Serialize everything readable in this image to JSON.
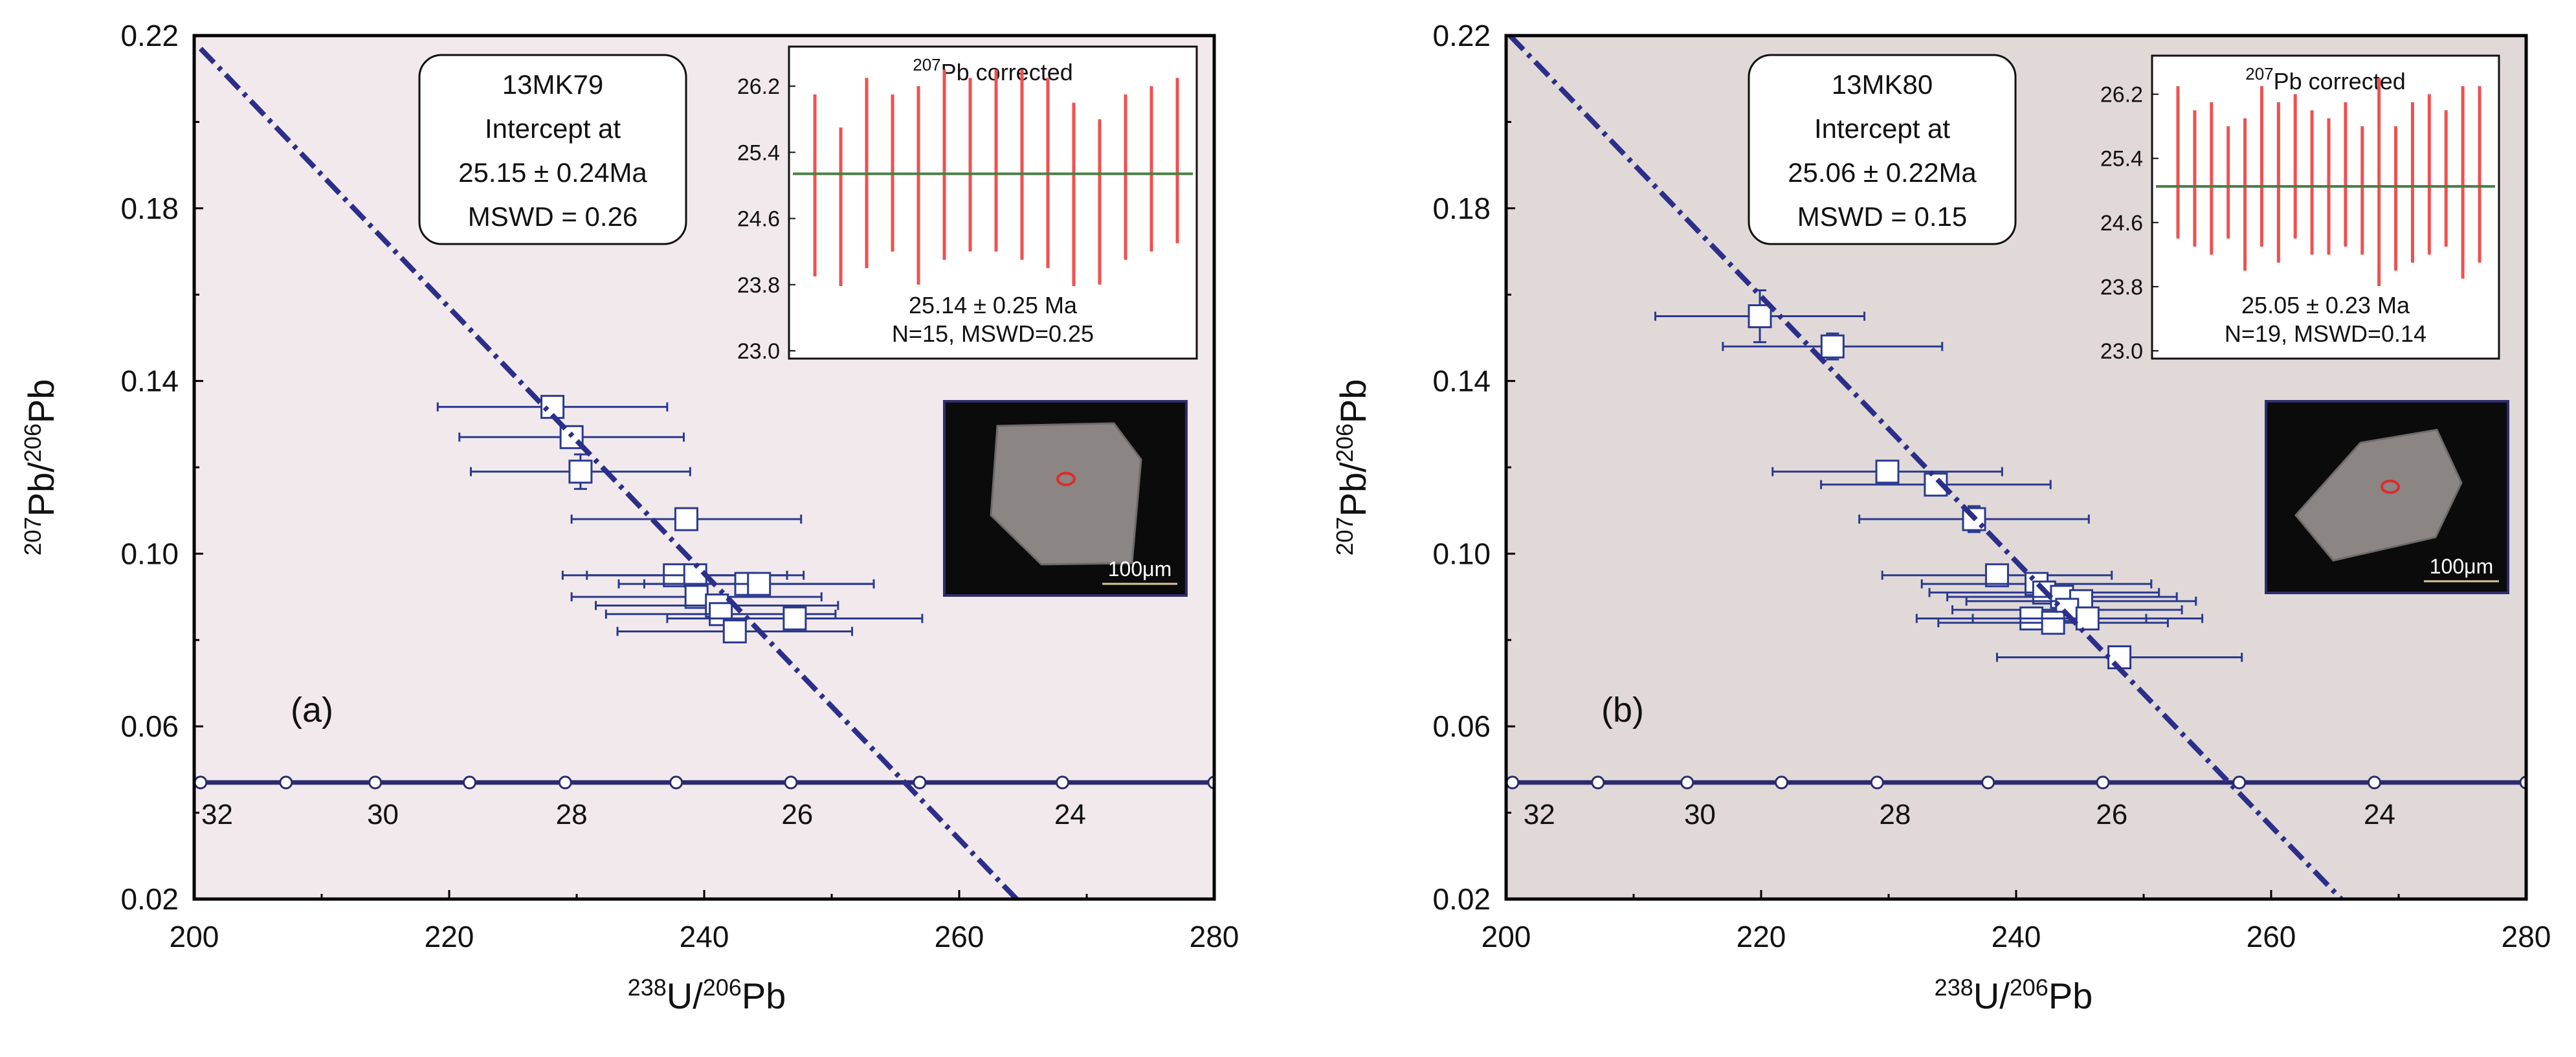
{
  "colors": {
    "panel_a_bg": "#f1e9ec",
    "panel_b_bg": "#e0d9d8",
    "regression": "#2b2f8a",
    "concordia": "#2b2a6e",
    "error_bar": "#2b3a8e",
    "marker_fill": "#ffffff",
    "inset_bar": "#f05050",
    "inset_mean": "#4a7f43"
  },
  "axes_text": {
    "x_label_sup1": "238",
    "x_label_mid": "U/",
    "x_label_sup2": "206",
    "x_label_end": "Pb",
    "y_label_sup1": "207",
    "y_label_mid": "Pb/",
    "y_label_sup2": "206",
    "y_label_end": "Pb"
  },
  "chart_data": [
    {
      "type": "scatter",
      "panel_label": "(a)",
      "xlabel": "238U/206Pb",
      "ylabel": "207Pb/206Pb",
      "xlim": [
        200,
        280
      ],
      "ylim": [
        0.02,
        0.22
      ],
      "x_ticks": [
        "200",
        "220",
        "240",
        "260",
        "280"
      ],
      "y_ticks": [
        "0.02",
        "0.06",
        "0.10",
        "0.14",
        "0.18",
        "0.22"
      ],
      "annotation": {
        "sample": "13MK79",
        "line1": "Intercept  at",
        "age": "25.15 ± 0.24Ma",
        "mswd": "MSWD = 0.26"
      },
      "regression_line": {
        "x": [
          200.5,
          264.5
        ],
        "y": [
          0.217,
          0.02
        ]
      },
      "concordia": {
        "y": 0.047,
        "tick_x": [
          200.5,
          207.2,
          214.2,
          221.6,
          229.1,
          237.8,
          246.8,
          256.9,
          268.1,
          280
        ],
        "labels": [
          {
            "text": "32",
            "x": 201.8
          },
          {
            "text": "30",
            "x": 214.8
          },
          {
            "text": "28",
            "x": 229.6
          },
          {
            "text": "26",
            "x": 247.3
          },
          {
            "text": "24",
            "x": 268.7
          }
        ]
      },
      "points": [
        {
          "x": 228.1,
          "y": 0.134,
          "xerr": 9.0,
          "yerr": 0.001
        },
        {
          "x": 229.6,
          "y": 0.127,
          "xerr": 8.8,
          "yerr": 0.002
        },
        {
          "x": 230.3,
          "y": 0.119,
          "xerr": 8.6,
          "yerr": 0.004
        },
        {
          "x": 238.6,
          "y": 0.108,
          "xerr": 9.0,
          "yerr": 0.001
        },
        {
          "x": 237.7,
          "y": 0.095,
          "xerr": 8.8,
          "yerr": 0.001
        },
        {
          "x": 239.3,
          "y": 0.095,
          "xerr": 8.5,
          "yerr": 0.001
        },
        {
          "x": 243.3,
          "y": 0.093,
          "xerr": 10.0,
          "yerr": 0.001
        },
        {
          "x": 244.3,
          "y": 0.093,
          "xerr": 9.0,
          "yerr": 0.001
        },
        {
          "x": 239.4,
          "y": 0.09,
          "xerr": 9.8,
          "yerr": 0.001
        },
        {
          "x": 241.0,
          "y": 0.088,
          "xerr": 9.5,
          "yerr": 0.001
        },
        {
          "x": 241.3,
          "y": 0.086,
          "xerr": 9.0,
          "yerr": 0.001
        },
        {
          "x": 247.1,
          "y": 0.085,
          "xerr": 10.0,
          "yerr": 0.001
        },
        {
          "x": 242.4,
          "y": 0.082,
          "xerr": 9.2,
          "yerr": 0.001
        }
      ],
      "inset": {
        "title_sup": "207",
        "title_rest": "Pb corrected",
        "ylim": [
          23.0,
          26.6
        ],
        "y_ticks": [
          "26.2",
          "25.4",
          "24.6",
          "23.8",
          "23.0"
        ],
        "mean": 25.14,
        "result": "25.14 ± 0.25  Ma",
        "stats": "N=15, MSWD=0.25",
        "bars": [
          {
            "low": 23.9,
            "high": 26.1
          },
          {
            "low": 23.7,
            "high": 25.7
          },
          {
            "low": 24.0,
            "high": 26.3
          },
          {
            "low": 24.2,
            "high": 26.1
          },
          {
            "low": 23.8,
            "high": 26.2
          },
          {
            "low": 24.1,
            "high": 26.4
          },
          {
            "low": 24.2,
            "high": 26.3
          },
          {
            "low": 24.2,
            "high": 26.4
          },
          {
            "low": 24.1,
            "high": 26.4
          },
          {
            "low": 24.0,
            "high": 26.3
          },
          {
            "low": 23.7,
            "high": 26.0
          },
          {
            "low": 23.8,
            "high": 25.8
          },
          {
            "low": 24.1,
            "high": 26.1
          },
          {
            "low": 24.2,
            "high": 26.2
          },
          {
            "low": 24.3,
            "high": 26.3
          }
        ]
      },
      "image": {
        "scale_label": "100μm",
        "grain_fill": "#8b8584"
      }
    },
    {
      "type": "scatter",
      "panel_label": "(b)",
      "xlabel": "238U/206Pb",
      "ylabel": "207Pb/206Pb",
      "xlim": [
        200,
        280
      ],
      "ylim": [
        0.02,
        0.22
      ],
      "x_ticks": [
        "200",
        "220",
        "240",
        "260",
        "280"
      ],
      "y_ticks": [
        "0.02",
        "0.06",
        "0.10",
        "0.14",
        "0.18",
        "0.22"
      ],
      "annotation": {
        "sample": "13MK80",
        "line1": "Intercept  at",
        "age": "25.06 ± 0.22Ma",
        "mswd": "MSWD = 0.15"
      },
      "regression_line": {
        "x": [
          200.3,
          265.5
        ],
        "y": [
          0.22,
          0.02
        ]
      },
      "concordia": {
        "y": 0.047,
        "tick_x": [
          200.5,
          207.2,
          214.2,
          221.6,
          229.1,
          237.8,
          246.8,
          257.5,
          268.1,
          280
        ],
        "labels": [
          {
            "text": "32",
            "x": 202.6
          },
          {
            "text": "30",
            "x": 215.2
          },
          {
            "text": "28",
            "x": 230.5
          },
          {
            "text": "26",
            "x": 247.5
          },
          {
            "text": "24",
            "x": 268.5
          }
        ]
      },
      "points": [
        {
          "x": 219.9,
          "y": 0.155,
          "xerr": 8.2,
          "yerr": 0.006
        },
        {
          "x": 225.6,
          "y": 0.148,
          "xerr": 8.6,
          "yerr": 0.003
        },
        {
          "x": 229.9,
          "y": 0.119,
          "xerr": 9.0,
          "yerr": 0.001
        },
        {
          "x": 233.7,
          "y": 0.116,
          "xerr": 9.0,
          "yerr": 0.001
        },
        {
          "x": 236.7,
          "y": 0.108,
          "xerr": 9.0,
          "yerr": 0.003
        },
        {
          "x": 238.5,
          "y": 0.095,
          "xerr": 9.0,
          "yerr": 0.001
        },
        {
          "x": 241.6,
          "y": 0.093,
          "xerr": 9.0,
          "yerr": 0.001
        },
        {
          "x": 242.2,
          "y": 0.091,
          "xerr": 9.0,
          "yerr": 0.001
        },
        {
          "x": 243.6,
          "y": 0.09,
          "xerr": 9.0,
          "yerr": 0.001
        },
        {
          "x": 245.1,
          "y": 0.089,
          "xerr": 9.0,
          "yerr": 0.001
        },
        {
          "x": 244.0,
          "y": 0.087,
          "xerr": 9.0,
          "yerr": 0.001
        },
        {
          "x": 241.2,
          "y": 0.085,
          "xerr": 9.0,
          "yerr": 0.001
        },
        {
          "x": 242.9,
          "y": 0.084,
          "xerr": 9.0,
          "yerr": 0.001
        },
        {
          "x": 245.6,
          "y": 0.085,
          "xerr": 9.0,
          "yerr": 0.001
        },
        {
          "x": 248.1,
          "y": 0.076,
          "xerr": 9.6,
          "yerr": 0.001
        }
      ],
      "inset": {
        "title_sup": "207",
        "title_rest": "Pb corrected",
        "ylim": [
          23.0,
          26.6
        ],
        "y_ticks": [
          "26.2",
          "25.4",
          "24.6",
          "23.8",
          "23.0"
        ],
        "mean": 25.05,
        "result": "25.05 ± 0.23  Ma",
        "stats": "N=19, MSWD=0.14",
        "bars": [
          {
            "low": 24.4,
            "high": 26.3
          },
          {
            "low": 24.3,
            "high": 26.0
          },
          {
            "low": 24.2,
            "high": 26.1
          },
          {
            "low": 24.4,
            "high": 25.8
          },
          {
            "low": 24.0,
            "high": 25.9
          },
          {
            "low": 24.3,
            "high": 26.3
          },
          {
            "low": 24.1,
            "high": 26.1
          },
          {
            "low": 24.4,
            "high": 26.2
          },
          {
            "low": 24.2,
            "high": 26.0
          },
          {
            "low": 24.2,
            "high": 25.9
          },
          {
            "low": 24.3,
            "high": 26.1
          },
          {
            "low": 24.2,
            "high": 25.8
          },
          {
            "low": 23.8,
            "high": 26.4
          },
          {
            "low": 24.0,
            "high": 25.8
          },
          {
            "low": 24.1,
            "high": 26.1
          },
          {
            "low": 24.2,
            "high": 26.2
          },
          {
            "low": 24.3,
            "high": 26.0
          },
          {
            "low": 23.9,
            "high": 26.3
          },
          {
            "low": 24.1,
            "high": 26.3
          }
        ]
      },
      "image": {
        "scale_label": "100μm",
        "grain_fill": "#8b8584"
      }
    }
  ]
}
